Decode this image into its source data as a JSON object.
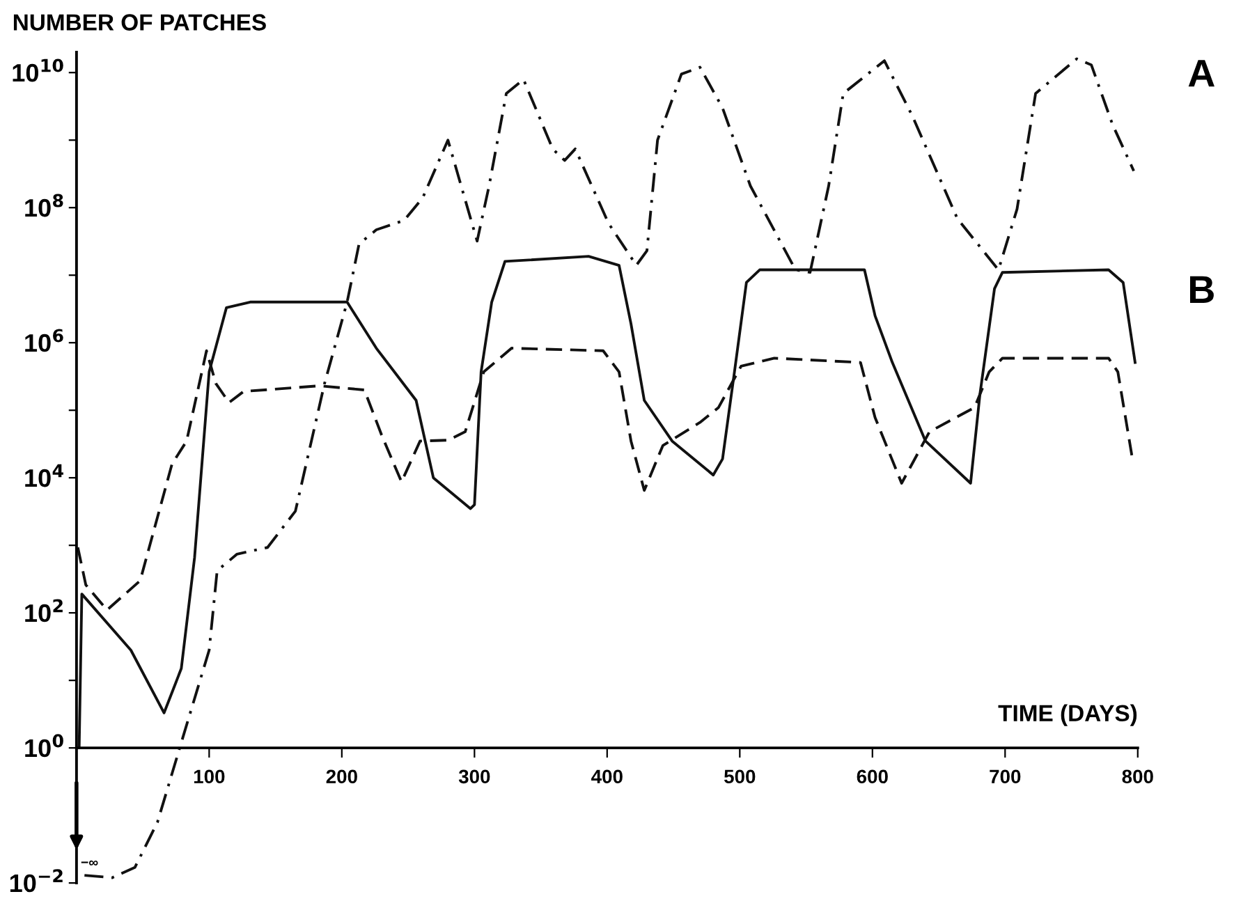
{
  "chart_data": {
    "type": "line",
    "ylabel": "NUMBER OF PATCHES",
    "xlabel": "TIME (DAYS)",
    "log": "y",
    "xlim": [
      0,
      800
    ],
    "ylim": [
      0.01,
      20000000000.0
    ],
    "xticks": [
      100,
      200,
      300,
      400,
      500,
      600,
      700,
      800
    ],
    "yticks": [
      {
        "value": 0.01,
        "label": "10$^{−2}$"
      },
      {
        "value": 1,
        "label": "10$^{0}$"
      },
      {
        "value": 10,
        "label": null
      },
      {
        "value": 100,
        "label": "10$^{2}$"
      },
      {
        "value": 1000,
        "label": null
      },
      {
        "value": 10000,
        "label": "10$^{4}$"
      },
      {
        "value": 100000,
        "label": null
      },
      {
        "value": 1000000,
        "label": "10$^{6}$"
      },
      {
        "value": 10000000,
        "label": null
      },
      {
        "value": 100000000,
        "label": "10$^{8}$"
      },
      {
        "value": 1000000000,
        "label": null
      },
      {
        "value": 10000000000,
        "label": "10$^{10}$"
      }
    ],
    "grid": false,
    "legend": false,
    "annotations": [
      "A",
      "B",
      "−∞"
    ],
    "series": [
      {
        "color": "#111111",
        "line_style": "solid",
        "x": [
          2,
          4,
          41,
          66,
          79,
          89,
          100,
          113,
          131,
          204,
          226,
          256,
          269,
          297,
          300,
          305,
          313,
          323,
          386,
          409,
          418,
          428,
          449,
          480,
          487,
          496,
          505,
          515,
          594,
          602,
          615,
          640,
          674,
          681,
          692,
          698,
          778,
          789,
          798
        ],
        "values": [
          1,
          190,
          28,
          3.3,
          15,
          660,
          370000.0,
          3300000.0,
          4000000.0,
          4000000.0,
          830000.0,
          140000.0,
          10000.0,
          3500.0,
          4000.0,
          370000.0,
          4000000.0,
          16000000.0,
          19000000.0,
          14000000.0,
          1900000.0,
          140000.0,
          35000.0,
          11000.0,
          19000.0,
          370000.0,
          7800000.0,
          12000000.0,
          12000000.0,
          2500000.0,
          510000.0,
          35000.0,
          8300.0,
          170000.0,
          6300000.0,
          11000000.0,
          12000000.0,
          7800000.0,
          510000.0
        ]
      },
      {
        "color": "#111111",
        "line_style": "dashed",
        "x": [
          1,
          7,
          23,
          48,
          72,
          83,
          98,
          105,
          115,
          126,
          183,
          217,
          230,
          245,
          259,
          280,
          293,
          307,
          328,
          397,
          409,
          418,
          428,
          442,
          470,
          484,
          501,
          526,
          591,
          602,
          622,
          643,
          677,
          688,
          698,
          778,
          785,
          796
        ],
        "values": [
          930,
          260,
          110,
          300,
          16000.0,
          35000.0,
          760000.0,
          250000.0,
          130000.0,
          190000.0,
          230000.0,
          200000.0,
          43000.0,
          8700.0,
          35000.0,
          36000.0,
          48000.0,
          370000.0,
          830000.0,
          760000.0,
          370000.0,
          35000.0,
          6500.0,
          30000.0,
          66000.0,
          110000.0,
          450000.0,
          590000.0,
          510000.0,
          78000.0,
          8300.0,
          48000.0,
          110000.0,
          370000.0,
          590000.0,
          590000.0,
          370000.0,
          19000.0
        ]
      },
      {
        "color": "#111111",
        "line_style": "dashdot",
        "x": [
          6,
          27,
          44,
          61,
          79,
          100,
          106,
          121,
          144,
          165,
          187,
          204,
          213,
          226,
          247,
          261,
          280,
          302,
          311,
          324,
          337,
          359,
          368,
          376,
          401,
          422,
          430,
          438,
          456,
          470,
          487,
          508,
          542,
          553,
          567,
          578,
          609,
          630,
          664,
          695,
          709,
          723,
          754,
          765,
          781,
          797
        ],
        "values": [
          0.013,
          0.012,
          0.017,
          0.079,
          1.2,
          28,
          420,
          740,
          930,
          3200.0,
          250000.0,
          4000000.0,
          29000000.0,
          47000000.0,
          65000000.0,
          140000000.0,
          1000000000.0,
          32000000.0,
          210000000.0,
          4900000000.0,
          7900000000.0,
          740000000.0,
          500000000.0,
          740000000.0,
          59000000.0,
          14000000.0,
          23000000.0,
          1000000000.0,
          9500000000.0,
          12000000000.0,
          3000000000.0,
          210000000.0,
          12000000.0,
          11000000.0,
          210000000.0,
          4900000000.0,
          15000000000.0,
          2300000000.0,
          69000000.0,
          12000000.0,
          95000000.0,
          4900000000.0,
          16000000000.0,
          13000000000.0,
          1700000000.0,
          350000000.0
        ]
      }
    ]
  }
}
